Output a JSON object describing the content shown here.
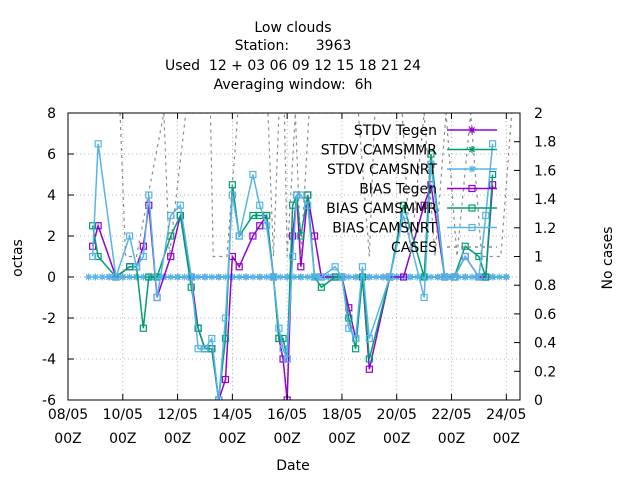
{
  "chart_data": {
    "type": "line",
    "title_lines": [
      "Low clouds",
      "Station:      3963",
      "Used  12 + 03 06 09 12 15 18 21 24",
      "Averaging window:  6h"
    ],
    "xlabel": "Date",
    "ylabel": "octas",
    "y2label": "No cases",
    "xlim": [
      "2021-05-08 00Z",
      "2021-05-24 12Z"
    ],
    "ylim": [
      -6,
      8
    ],
    "y2lim": [
      0,
      2
    ],
    "x_ticks": [
      {
        "line1": "08/05",
        "line2": "00Z",
        "day": 8
      },
      {
        "line1": "10/05",
        "line2": "00Z",
        "day": 10
      },
      {
        "line1": "12/05",
        "line2": "00Z",
        "day": 12
      },
      {
        "line1": "14/05",
        "line2": "00Z",
        "day": 14
      },
      {
        "line1": "16/05",
        "line2": "00Z",
        "day": 16
      },
      {
        "line1": "18/05",
        "line2": "00Z",
        "day": 18
      },
      {
        "line1": "20/05",
        "line2": "00Z",
        "day": 20
      },
      {
        "line1": "22/05",
        "line2": "00Z",
        "day": 22
      },
      {
        "line1": "24/05",
        "line2": "00Z",
        "day": 24
      }
    ],
    "y_ticks": [
      "-6",
      "-4",
      "-2",
      "0",
      "2",
      "4",
      "6",
      "8"
    ],
    "y2_ticks": [
      "0",
      "0.2",
      "0.4",
      "0.6",
      "0.8",
      "1",
      "1.2",
      "1.4",
      "1.6",
      "1.8",
      "2"
    ],
    "grid": true,
    "legend_position": "top-right",
    "series": [
      {
        "name": "STDV Tegen",
        "color": "#9400d3",
        "axis": "y",
        "marker": "star",
        "x": [
          9.5,
          10,
          10.5,
          11,
          11.5,
          12,
          12.5,
          13,
          13.5,
          14,
          14.5,
          15,
          15.5,
          16,
          16.5,
          17,
          17.5,
          18,
          18.5,
          19,
          19.5,
          20,
          20.5,
          21,
          21.5,
          22,
          22.5,
          23,
          23.5,
          24
        ],
        "y": [
          0,
          0,
          0,
          0,
          0,
          0,
          0,
          0,
          0,
          0,
          0,
          0,
          0,
          0,
          0,
          0,
          0,
          0,
          0,
          0,
          0,
          0,
          0,
          0,
          0,
          0,
          0,
          0,
          0,
          0
        ]
      },
      {
        "name": "STDV CAMSMMR",
        "color": "#009e73",
        "axis": "y",
        "marker": "star",
        "x": [
          9.5,
          10,
          10.5,
          11,
          11.5,
          12,
          12.5,
          13,
          13.5,
          14,
          14.5,
          15,
          15.5,
          16,
          16.5,
          17,
          17.5,
          18,
          18.5,
          19,
          19.5,
          20,
          20.5,
          21,
          21.5,
          22,
          22.5,
          23,
          23.5,
          24
        ],
        "y": [
          0,
          0,
          0,
          0,
          0,
          0,
          0,
          0,
          0,
          0,
          0,
          0,
          0,
          0,
          0,
          0,
          0,
          0,
          0,
          0,
          0,
          0,
          0,
          0,
          0,
          0,
          0,
          0,
          0,
          0
        ]
      },
      {
        "name": "STDV CAMSNRT",
        "color": "#56b4e9",
        "axis": "y",
        "marker": "star",
        "x": [
          8.75,
          9,
          9.25,
          9.5,
          9.75,
          10,
          10.25,
          10.5,
          10.75,
          11,
          11.25,
          11.5,
          11.75,
          12,
          12.25,
          12.5,
          12.75,
          13,
          13.25,
          13.5,
          13.75,
          14,
          14.25,
          14.5,
          14.75,
          15,
          15.25,
          15.5,
          15.75,
          16,
          16.25,
          16.5,
          16.75,
          17,
          17.25,
          17.5,
          17.75,
          18,
          18.25,
          18.5,
          18.75,
          19,
          19.25,
          19.5,
          19.75,
          20,
          20.25,
          20.5,
          20.75,
          21,
          21.25,
          21.5,
          21.75,
          22,
          22.25,
          22.5,
          22.75,
          23,
          23.25,
          23.5,
          23.75,
          24
        ],
        "y": [
          0,
          0,
          0,
          0,
          0,
          0,
          0,
          0,
          0,
          0,
          0,
          0,
          0,
          0,
          0,
          0,
          0,
          0,
          0,
          0,
          0,
          0,
          0,
          0,
          0,
          0,
          0,
          0,
          0,
          0,
          0,
          0,
          0,
          0,
          0,
          0,
          0,
          0,
          0,
          0,
          0,
          0,
          0,
          0,
          0,
          0,
          0,
          0,
          0,
          0,
          0,
          0,
          0,
          0,
          0,
          0,
          0,
          0,
          0,
          0,
          0,
          0
        ]
      },
      {
        "name": "BIAS Tegen",
        "color": "#9400d3",
        "axis": "y",
        "marker": "square",
        "x": [
          8.9,
          9.1,
          9.75,
          10.25,
          10.5,
          10.75,
          10.95,
          11.25,
          11.75,
          12.1,
          12.5,
          12.75,
          13.0,
          13.25,
          13.5,
          13.75,
          14.0,
          14.25,
          14.75,
          15.0,
          15.25,
          15.5,
          15.7,
          15.85,
          16.0,
          16.2,
          16.35,
          16.5,
          16.75,
          17.0,
          17.25,
          17.75,
          18.0,
          18.25,
          18.5,
          18.75,
          19.0,
          19.75,
          20.25,
          21.0,
          21.25,
          21.75,
          22.1,
          22.5,
          23.0,
          23.25,
          23.5
        ],
        "y": [
          1.5,
          2.5,
          0,
          0.5,
          0.5,
          1.5,
          3.5,
          -1.0,
          1.0,
          3.0,
          0,
          -2.5,
          -3.5,
          -3.5,
          -6.0,
          -5.0,
          1.0,
          0.5,
          2.0,
          2.5,
          3.0,
          0,
          -3.0,
          -4.0,
          -6.0,
          2.0,
          4.0,
          0.5,
          4.0,
          2.0,
          0,
          0,
          0,
          -1.5,
          -3.0,
          0,
          -4.5,
          0,
          0,
          3.5,
          4.5,
          0,
          0,
          1.0,
          0,
          0,
          4.5
        ]
      },
      {
        "name": "BIAS CAMSMMR",
        "color": "#009e73",
        "axis": "y",
        "marker": "square",
        "x": [
          8.9,
          9.1,
          9.75,
          10.25,
          10.5,
          10.75,
          10.95,
          11.25,
          11.75,
          12.1,
          12.5,
          12.75,
          13.0,
          13.25,
          13.5,
          13.75,
          14.0,
          14.25,
          14.75,
          15.0,
          15.25,
          15.5,
          15.7,
          15.85,
          16.0,
          16.2,
          16.35,
          16.5,
          16.75,
          17.0,
          17.25,
          17.75,
          18.0,
          18.25,
          18.5,
          18.75,
          19.0,
          19.75,
          20.25,
          21.0,
          21.25,
          21.75,
          22.1,
          22.5,
          23.0,
          23.25,
          23.5
        ],
        "y": [
          2.5,
          1.0,
          0,
          0.5,
          0.5,
          -2.5,
          0,
          0,
          2.0,
          3.0,
          -0.5,
          -2.5,
          -3.5,
          -3.5,
          -6.0,
          -3.0,
          4.5,
          2.0,
          3.0,
          3.0,
          3.0,
          0,
          -3.0,
          -3.0,
          -4.0,
          3.5,
          4.0,
          2.0,
          4.0,
          0,
          -0.5,
          0,
          0,
          -2.0,
          -3.5,
          0,
          -4.0,
          0,
          3.5,
          0,
          6.0,
          0,
          0,
          1.5,
          1.0,
          0,
          5.0
        ]
      },
      {
        "name": "BIAS CAMSNRT",
        "color": "#56b4e9",
        "axis": "y",
        "marker": "square",
        "x": [
          8.9,
          9.1,
          9.75,
          10.25,
          10.5,
          10.75,
          10.95,
          11.25,
          11.75,
          12.1,
          12.5,
          12.75,
          13.0,
          13.25,
          13.5,
          13.75,
          14.0,
          14.25,
          14.75,
          15.0,
          15.25,
          15.5,
          15.7,
          15.85,
          16.0,
          16.2,
          16.35,
          16.5,
          16.75,
          17.0,
          17.25,
          17.75,
          18.0,
          18.25,
          18.5,
          18.75,
          19.0,
          19.75,
          20.25,
          21.0,
          21.25,
          21.75,
          22.1,
          22.5,
          23.0,
          23.25,
          23.5
        ],
        "y": [
          1.0,
          6.5,
          0,
          2.0,
          0.5,
          1.0,
          4.0,
          -1.0,
          3.0,
          3.5,
          0,
          -3.5,
          -3.5,
          -3.0,
          -6.0,
          -2.0,
          4.0,
          2.0,
          5.0,
          3.5,
          2.5,
          0,
          -2.5,
          -3.5,
          -4.0,
          1.0,
          4.0,
          4.0,
          3.5,
          0,
          0,
          0.5,
          0,
          -2.5,
          -3.0,
          0.5,
          -3.0,
          0,
          3.0,
          -1.0,
          5.5,
          0,
          0,
          1.0,
          0,
          3.0,
          6.5
        ]
      },
      {
        "name": "CASES",
        "color": "#8c8c8c",
        "axis": "y2",
        "marker": "none",
        "style": "dashed",
        "x": [
          9.9,
          10.1,
          10.5,
          11.5,
          11.7,
          12.3,
          13.2,
          13.3,
          13.8,
          14.2,
          14.7,
          15.3,
          15.5,
          15.7,
          15.9,
          16.0,
          16.3,
          16.5,
          16.8,
          17.3,
          18.6,
          19.0,
          19.2,
          20.2,
          20.5,
          21.0,
          21.4,
          21.8,
          22.2,
          22.7,
          23.1,
          23.8,
          24.2
        ],
        "y": [
          2.0,
          1.0,
          1.0,
          2.0,
          1.0,
          2.0,
          2.0,
          1.0,
          1.0,
          2.0,
          2.0,
          2.0,
          1.0,
          2.0,
          2.0,
          1.0,
          2.0,
          1.0,
          2.0,
          2.0,
          2.0,
          1.0,
          2.0,
          2.0,
          1.0,
          2.0,
          1.0,
          2.0,
          1.0,
          2.0,
          1.0,
          1.0,
          2.0
        ]
      }
    ]
  }
}
